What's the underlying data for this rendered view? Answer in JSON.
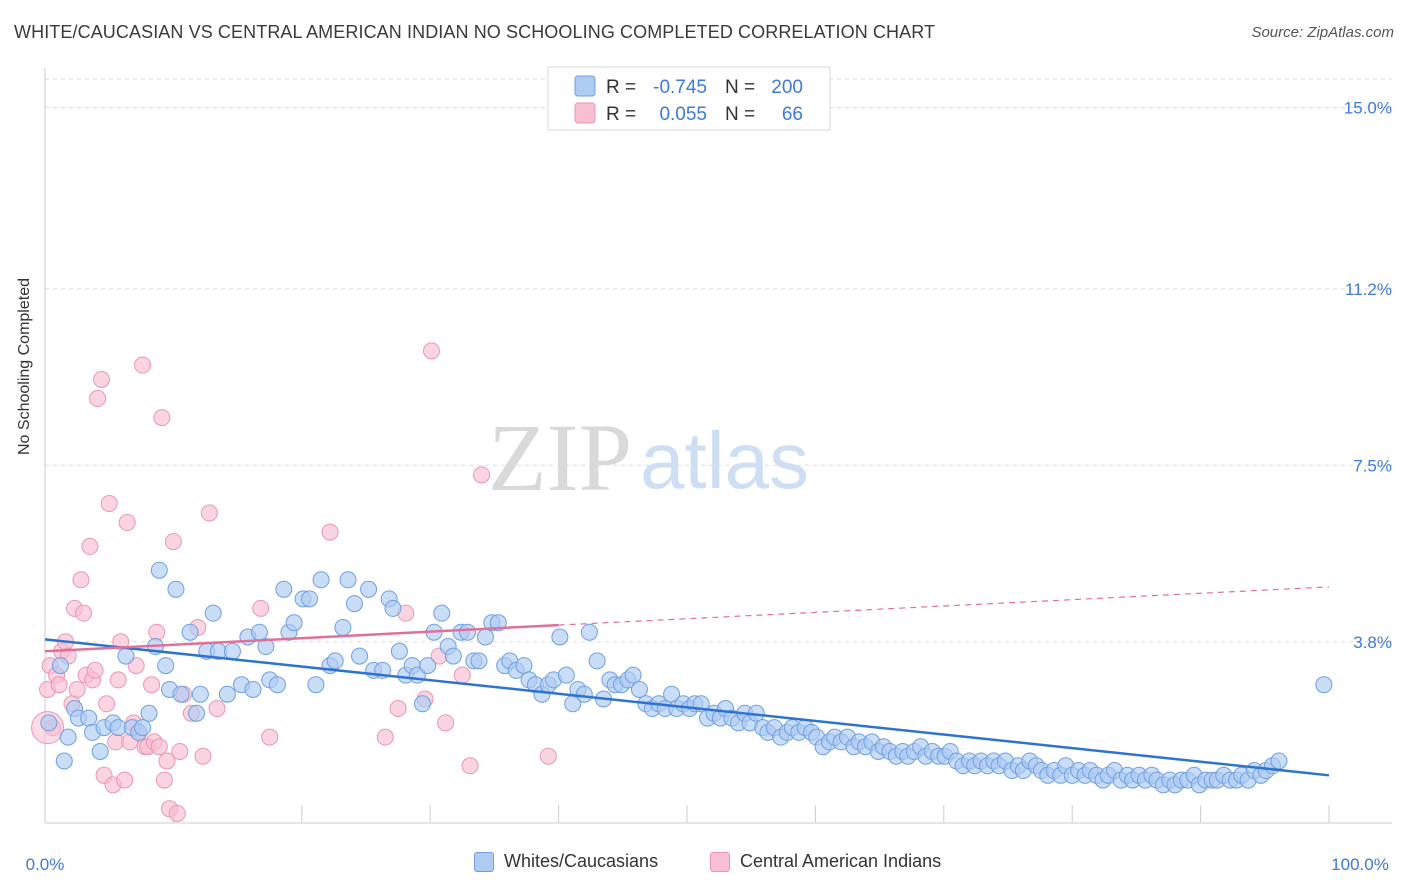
{
  "title": "WHITE/CAUCASIAN VS CENTRAL AMERICAN INDIAN NO SCHOOLING COMPLETED CORRELATION CHART",
  "source": "Source: ZipAtlas.com",
  "watermark": {
    "zip": "ZIP",
    "atlas": "atlas"
  },
  "colors": {
    "blue": "#2f73d1",
    "blue_fill": "#aecbf2",
    "blue_stroke": "#6f9fe0",
    "pink": "#e0709a",
    "pink_fill": "#f7bfd1",
    "pink_stroke": "#ec95b4",
    "axis_text": "#3f7ad6"
  },
  "legend_top": {
    "rows": [
      {
        "r_label": "R =",
        "r_value": "-0.745",
        "n_label": "N =",
        "n_value": "200"
      },
      {
        "r_label": "R =",
        "r_value": "0.055",
        "n_label": "N =",
        "n_value": "66"
      }
    ]
  },
  "legend_bottom": [
    "Whites/Caucasians",
    "Central American Indians"
  ],
  "chart_data": {
    "type": "scatter",
    "ylabel": "No Schooling Completed",
    "xlim": [
      0,
      100
    ],
    "ylim": [
      0,
      15.0
    ],
    "x_tick_labels": [
      "0.0%",
      "100.0%"
    ],
    "y_ticks": [
      3.8,
      7.5,
      11.2,
      15.0
    ],
    "y_tick_labels": [
      "3.8%",
      "7.5%",
      "11.2%",
      "15.0%"
    ],
    "grid": true,
    "legend_position": "top-center",
    "series": [
      {
        "name": "Whites/Caucasians",
        "r": -0.745,
        "n": 200,
        "trend": {
          "x0": 0,
          "y0": 3.85,
          "x1": 100,
          "y1": 1.0
        },
        "points": [
          [
            0.3,
            2.1
          ],
          [
            1.2,
            3.3
          ],
          [
            1.5,
            1.3
          ],
          [
            1.8,
            1.8
          ],
          [
            2.3,
            2.4
          ],
          [
            2.6,
            2.2
          ],
          [
            3.4,
            2.2
          ],
          [
            3.7,
            1.9
          ],
          [
            4.3,
            1.5
          ],
          [
            4.6,
            2.0
          ],
          [
            5.3,
            2.1
          ],
          [
            5.7,
            2.0
          ],
          [
            6.3,
            3.5
          ],
          [
            6.8,
            2.0
          ],
          [
            7.3,
            1.9
          ],
          [
            7.6,
            2.0
          ],
          [
            8.1,
            2.3
          ],
          [
            8.6,
            3.7
          ],
          [
            8.9,
            5.3
          ],
          [
            9.4,
            3.3
          ],
          [
            9.7,
            2.8
          ],
          [
            10.2,
            4.9
          ],
          [
            10.6,
            2.7
          ],
          [
            11.3,
            4.0
          ],
          [
            11.8,
            2.3
          ],
          [
            12.1,
            2.7
          ],
          [
            12.6,
            3.6
          ],
          [
            13.1,
            4.4
          ],
          [
            13.5,
            3.6
          ],
          [
            14.2,
            2.7
          ],
          [
            14.6,
            3.6
          ],
          [
            15.3,
            2.9
          ],
          [
            15.8,
            3.9
          ],
          [
            16.2,
            2.8
          ],
          [
            16.7,
            4.0
          ],
          [
            17.2,
            3.7
          ],
          [
            17.5,
            3.0
          ],
          [
            18.1,
            2.9
          ],
          [
            18.6,
            4.9
          ],
          [
            19.0,
            4.0
          ],
          [
            19.4,
            4.2
          ],
          [
            20.1,
            4.7
          ],
          [
            20.6,
            4.7
          ],
          [
            21.1,
            2.9
          ],
          [
            21.5,
            5.1
          ],
          [
            22.2,
            3.3
          ],
          [
            22.6,
            3.4
          ],
          [
            23.2,
            4.1
          ],
          [
            23.6,
            5.1
          ],
          [
            24.1,
            4.6
          ],
          [
            24.5,
            3.5
          ],
          [
            25.2,
            4.9
          ],
          [
            25.6,
            3.2
          ],
          [
            26.3,
            3.2
          ],
          [
            26.8,
            4.7
          ],
          [
            27.1,
            4.5
          ],
          [
            27.6,
            3.6
          ],
          [
            28.1,
            3.1
          ],
          [
            28.6,
            3.3
          ],
          [
            29.0,
            3.1
          ],
          [
            29.4,
            2.5
          ],
          [
            29.8,
            3.3
          ],
          [
            30.3,
            4.0
          ],
          [
            30.9,
            4.4
          ],
          [
            31.4,
            3.7
          ],
          [
            31.8,
            3.5
          ],
          [
            32.4,
            4.0
          ],
          [
            32.9,
            4.0
          ],
          [
            33.4,
            3.4
          ],
          [
            33.8,
            3.4
          ],
          [
            34.3,
            3.9
          ],
          [
            34.8,
            4.2
          ],
          [
            35.3,
            4.2
          ],
          [
            35.8,
            3.3
          ],
          [
            36.2,
            3.4
          ],
          [
            36.7,
            3.2
          ],
          [
            37.3,
            3.3
          ],
          [
            37.7,
            3.0
          ],
          [
            38.2,
            2.9
          ],
          [
            38.7,
            2.7
          ],
          [
            39.2,
            2.9
          ],
          [
            39.6,
            3.0
          ],
          [
            40.1,
            3.9
          ],
          [
            40.6,
            3.1
          ],
          [
            41.1,
            2.5
          ],
          [
            41.5,
            2.8
          ],
          [
            42.0,
            2.7
          ],
          [
            42.4,
            4.0
          ],
          [
            43.0,
            3.4
          ],
          [
            43.5,
            2.6
          ],
          [
            44.0,
            3.0
          ],
          [
            44.4,
            2.9
          ],
          [
            44.9,
            2.9
          ],
          [
            45.4,
            3.0
          ],
          [
            45.8,
            3.1
          ],
          [
            46.3,
            2.8
          ],
          [
            46.8,
            2.5
          ],
          [
            47.3,
            2.4
          ],
          [
            47.8,
            2.5
          ],
          [
            48.3,
            2.4
          ],
          [
            48.8,
            2.7
          ],
          [
            49.2,
            2.4
          ],
          [
            49.7,
            2.5
          ],
          [
            50.2,
            2.4
          ],
          [
            50.6,
            2.5
          ],
          [
            51.1,
            2.5
          ],
          [
            51.6,
            2.2
          ],
          [
            52.1,
            2.3
          ],
          [
            52.6,
            2.2
          ],
          [
            53.0,
            2.4
          ],
          [
            53.5,
            2.2
          ],
          [
            54.0,
            2.1
          ],
          [
            54.5,
            2.3
          ],
          [
            54.9,
            2.1
          ],
          [
            55.4,
            2.3
          ],
          [
            55.9,
            2.0
          ],
          [
            56.3,
            1.9
          ],
          [
            56.8,
            2.0
          ],
          [
            57.3,
            1.8
          ],
          [
            57.8,
            1.9
          ],
          [
            58.2,
            2.0
          ],
          [
            58.7,
            1.9
          ],
          [
            59.2,
            2.0
          ],
          [
            59.7,
            1.9
          ],
          [
            60.1,
            1.8
          ],
          [
            60.6,
            1.6
          ],
          [
            61.1,
            1.7
          ],
          [
            61.5,
            1.8
          ],
          [
            62.0,
            1.7
          ],
          [
            62.5,
            1.8
          ],
          [
            63.0,
            1.6
          ],
          [
            63.4,
            1.7
          ],
          [
            63.9,
            1.6
          ],
          [
            64.4,
            1.7
          ],
          [
            64.9,
            1.5
          ],
          [
            65.3,
            1.6
          ],
          [
            65.8,
            1.5
          ],
          [
            66.3,
            1.4
          ],
          [
            66.8,
            1.5
          ],
          [
            67.2,
            1.4
          ],
          [
            67.7,
            1.5
          ],
          [
            68.2,
            1.6
          ],
          [
            68.6,
            1.4
          ],
          [
            69.1,
            1.5
          ],
          [
            69.6,
            1.4
          ],
          [
            70.1,
            1.4
          ],
          [
            70.5,
            1.5
          ],
          [
            71.0,
            1.3
          ],
          [
            71.5,
            1.2
          ],
          [
            72.0,
            1.3
          ],
          [
            72.4,
            1.2
          ],
          [
            72.9,
            1.3
          ],
          [
            73.4,
            1.2
          ],
          [
            73.9,
            1.3
          ],
          [
            74.3,
            1.2
          ],
          [
            74.8,
            1.3
          ],
          [
            75.3,
            1.1
          ],
          [
            75.8,
            1.2
          ],
          [
            76.2,
            1.1
          ],
          [
            76.7,
            1.3
          ],
          [
            77.2,
            1.2
          ],
          [
            77.6,
            1.1
          ],
          [
            78.1,
            1.0
          ],
          [
            78.6,
            1.1
          ],
          [
            79.1,
            1.0
          ],
          [
            79.5,
            1.2
          ],
          [
            80.0,
            1.0
          ],
          [
            80.5,
            1.1
          ],
          [
            81.0,
            1.0
          ],
          [
            81.4,
            1.1
          ],
          [
            81.9,
            1.0
          ],
          [
            82.4,
            0.9
          ],
          [
            82.8,
            1.0
          ],
          [
            83.3,
            1.1
          ],
          [
            83.8,
            0.9
          ],
          [
            84.3,
            1.0
          ],
          [
            84.7,
            0.9
          ],
          [
            85.2,
            1.0
          ],
          [
            85.7,
            0.9
          ],
          [
            86.2,
            1.0
          ],
          [
            86.6,
            0.9
          ],
          [
            87.1,
            0.8
          ],
          [
            87.6,
            0.9
          ],
          [
            88.0,
            0.8
          ],
          [
            88.5,
            0.9
          ],
          [
            89.0,
            0.9
          ],
          [
            89.5,
            1.0
          ],
          [
            89.9,
            0.8
          ],
          [
            90.4,
            0.9
          ],
          [
            90.9,
            0.9
          ],
          [
            91.3,
            0.9
          ],
          [
            91.8,
            1.0
          ],
          [
            92.3,
            0.9
          ],
          [
            92.8,
            0.9
          ],
          [
            93.2,
            1.0
          ],
          [
            93.7,
            0.9
          ],
          [
            94.2,
            1.1
          ],
          [
            94.7,
            1.0
          ],
          [
            95.1,
            1.1
          ],
          [
            95.6,
            1.2
          ],
          [
            96.1,
            1.3
          ],
          [
            99.6,
            2.9
          ]
        ]
      },
      {
        "name": "Central American Indians",
        "r": 0.055,
        "n": 66,
        "trend": {
          "x0": 0,
          "y0": 3.6,
          "x1": 40,
          "y1": 4.15
        },
        "trend_dashed": {
          "x0": 40,
          "y0": 4.15,
          "x1": 100,
          "y1": 4.95
        },
        "points": [
          [
            0.2,
            2.8
          ],
          [
            0.4,
            3.3
          ],
          [
            0.6,
            2.0
          ],
          [
            0.9,
            3.1
          ],
          [
            1.1,
            2.9
          ],
          [
            1.3,
            3.6
          ],
          [
            1.6,
            3.8
          ],
          [
            1.8,
            3.5
          ],
          [
            2.1,
            2.5
          ],
          [
            2.3,
            4.5
          ],
          [
            2.5,
            2.8
          ],
          [
            2.8,
            5.1
          ],
          [
            3.0,
            4.4
          ],
          [
            3.2,
            3.1
          ],
          [
            3.5,
            5.8
          ],
          [
            3.7,
            3.0
          ],
          [
            3.9,
            3.2
          ],
          [
            4.1,
            8.9
          ],
          [
            4.4,
            9.3
          ],
          [
            4.6,
            1.0
          ],
          [
            4.8,
            2.5
          ],
          [
            5.0,
            6.7
          ],
          [
            5.3,
            0.8
          ],
          [
            5.5,
            1.7
          ],
          [
            5.7,
            3.0
          ],
          [
            5.9,
            3.8
          ],
          [
            6.2,
            0.9
          ],
          [
            6.4,
            6.3
          ],
          [
            6.6,
            1.7
          ],
          [
            6.9,
            2.1
          ],
          [
            7.1,
            3.3
          ],
          [
            7.3,
            1.9
          ],
          [
            7.6,
            9.6
          ],
          [
            7.8,
            1.6
          ],
          [
            8.0,
            1.6
          ],
          [
            8.3,
            2.9
          ],
          [
            8.5,
            1.7
          ],
          [
            8.7,
            4.0
          ],
          [
            8.9,
            1.6
          ],
          [
            9.1,
            8.5
          ],
          [
            9.3,
            0.9
          ],
          [
            9.5,
            1.3
          ],
          [
            9.7,
            0.3
          ],
          [
            10.0,
            5.9
          ],
          [
            10.3,
            0.2
          ],
          [
            10.5,
            1.5
          ],
          [
            10.8,
            2.7
          ],
          [
            11.4,
            2.3
          ],
          [
            11.9,
            4.1
          ],
          [
            12.3,
            1.4
          ],
          [
            12.8,
            6.5
          ],
          [
            13.4,
            2.4
          ],
          [
            16.8,
            4.5
          ],
          [
            17.5,
            1.8
          ],
          [
            22.2,
            6.1
          ],
          [
            26.5,
            1.8
          ],
          [
            27.5,
            2.4
          ],
          [
            28.1,
            4.4
          ],
          [
            29.6,
            2.6
          ],
          [
            30.1,
            9.9
          ],
          [
            30.7,
            3.5
          ],
          [
            31.2,
            2.1
          ],
          [
            32.5,
            3.1
          ],
          [
            34.0,
            7.3
          ],
          [
            33.1,
            1.2
          ],
          [
            39.2,
            1.4
          ]
        ]
      }
    ]
  }
}
